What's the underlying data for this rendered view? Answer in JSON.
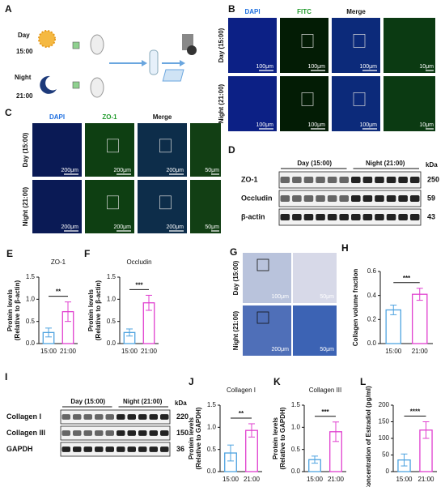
{
  "figure": {
    "A": {
      "letter": "A",
      "day": "Day",
      "day_time": "15:00",
      "night": "Night",
      "night_time": "21:00"
    },
    "B": {
      "letter": "B",
      "columns": [
        "DAPI",
        "FITC",
        "Merge"
      ],
      "rows": [
        "Day (15:00)",
        "Night (21:00)"
      ],
      "scale_large": "100μm",
      "scale_small": "10μm"
    },
    "C": {
      "letter": "C",
      "columns": [
        "DAPI",
        "ZO-1",
        "Merge"
      ],
      "rows": [
        "Day (15:00)",
        "Night (21:00)"
      ],
      "scale_large": "200μm",
      "scale_small": "50μm"
    },
    "D": {
      "letter": "D",
      "groups": [
        "Day (15:00)",
        "Night (21:00)"
      ],
      "unit": "kDa",
      "bands": [
        {
          "name": "ZO-1",
          "kda": 250
        },
        {
          "name": "Occludin",
          "kda": 59
        },
        {
          "name": "β-actin",
          "kda": 43
        }
      ]
    },
    "G": {
      "letter": "G",
      "rows": [
        "Day (15:00)",
        "Night (21:00)"
      ],
      "scales": [
        "100μm",
        "50μm",
        "200μm",
        "50μm"
      ]
    },
    "I": {
      "letter": "I",
      "groups": [
        "Day (15:00)",
        "Night (21:00)"
      ],
      "unit": "kDa",
      "bands": [
        {
          "name": "Collagen I",
          "kda": 220
        },
        {
          "name": "Collagen III",
          "kda": 150
        },
        {
          "name": "GAPDH",
          "kda": 36
        }
      ]
    }
  },
  "chart_data": [
    {
      "type": "bar",
      "panel": "E",
      "title": "ZO-1",
      "y_label": [
        "Protein levels",
        "(Relative to β-actin)"
      ],
      "categories": [
        "15:00",
        "21:00"
      ],
      "values": [
        0.25,
        0.72
      ],
      "errors": [
        0.1,
        0.22
      ],
      "colors": [
        "#4ea3e0",
        "#e03fcf"
      ],
      "significance": "**",
      "ylim": [
        0,
        1.5
      ],
      "yticks": [
        {
          "value": 0,
          "label": "0.0"
        },
        0.5,
        {
          "value": 1,
          "label": "1.0"
        },
        1.5
      ]
    },
    {
      "type": "bar",
      "panel": "F",
      "title": "Occludin",
      "y_label": [
        "Protein levels",
        "(Relative to β-actin)"
      ],
      "categories": [
        "15:00",
        "21:00"
      ],
      "values": [
        0.25,
        0.92
      ],
      "errors": [
        0.08,
        0.17
      ],
      "colors": [
        "#4ea3e0",
        "#e03fcf"
      ],
      "significance": "***",
      "ylim": [
        0,
        1.5
      ],
      "yticks": [
        {
          "value": 0,
          "label": "0.0"
        },
        0.5,
        {
          "value": 1,
          "label": "1.0"
        },
        1.5
      ]
    },
    {
      "type": "bar",
      "panel": "H",
      "y_label": [
        "Collagen volume fraction"
      ],
      "categories": [
        "15:00",
        "21:00"
      ],
      "values": [
        0.28,
        0.41
      ],
      "errors": [
        0.04,
        0.05
      ],
      "colors": [
        "#4ea3e0",
        "#e03fcf"
      ],
      "significance": "***",
      "ylim": [
        0,
        0.6
      ],
      "yticks": [
        {
          "value": 0,
          "label": "0.0"
        },
        0.2,
        0.4,
        0.6
      ]
    },
    {
      "type": "bar",
      "panel": "J",
      "title": "Collagen I",
      "y_label": [
        "Protein levels",
        "(Relative to GAPDH)"
      ],
      "categories": [
        "15:00",
        "21:00"
      ],
      "values": [
        0.42,
        0.93
      ],
      "errors": [
        0.18,
        0.15
      ],
      "colors": [
        "#4ea3e0",
        "#e03fcf"
      ],
      "significance": "**",
      "ylim": [
        0,
        1.5
      ],
      "yticks": [
        {
          "value": 0,
          "label": "0.0"
        },
        0.5,
        {
          "value": 1,
          "label": "1.0"
        },
        1.5
      ]
    },
    {
      "type": "bar",
      "panel": "K",
      "title": "Collagen III",
      "y_label": [
        "Protein levels",
        "(Relative to GAPDH)"
      ],
      "categories": [
        "15:00",
        "21:00"
      ],
      "values": [
        0.27,
        0.9
      ],
      "errors": [
        0.08,
        0.22
      ],
      "colors": [
        "#4ea3e0",
        "#e03fcf"
      ],
      "significance": "***",
      "ylim": [
        0,
        1.5
      ],
      "yticks": [
        {
          "value": 0,
          "label": "0.0"
        },
        0.5,
        {
          "value": 1,
          "label": "1.0"
        },
        1.5
      ]
    },
    {
      "type": "bar",
      "panel": "L",
      "y_label": [
        "Concentration of Estradiol (pg/ml)"
      ],
      "categories": [
        "15:00",
        "21:00"
      ],
      "values": [
        35,
        125
      ],
      "errors": [
        18,
        25
      ],
      "colors": [
        "#4ea3e0",
        "#e03fcf"
      ],
      "significance": "****",
      "ylim": [
        0,
        200
      ],
      "yticks": [
        0,
        50,
        100,
        150,
        200
      ]
    }
  ]
}
